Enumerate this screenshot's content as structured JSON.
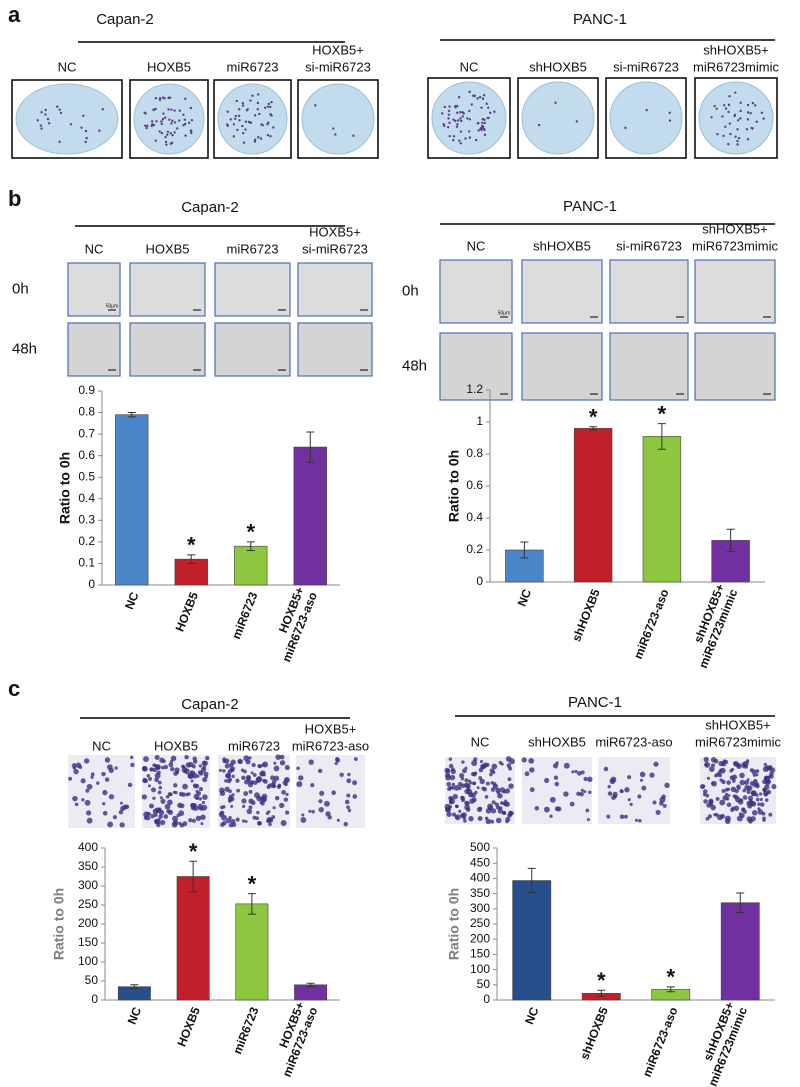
{
  "figure": {
    "a": {
      "label": "a",
      "groups": [
        {
          "title": "Capan-2",
          "conditions": [
            [
              "NC"
            ],
            [
              "HOXB5"
            ],
            [
              "miR6723"
            ],
            [
              "HOXB5+",
              "si-miR6723"
            ]
          ]
        },
        {
          "title": "PANC-1",
          "conditions": [
            [
              "NC"
            ],
            [
              "shHOXB5"
            ],
            [
              "si-miR6723"
            ],
            [
              "shHOXB5+",
              "miR6723mimic"
            ]
          ]
        }
      ]
    },
    "b": {
      "label": "b",
      "groups": [
        {
          "title": "Capan-2",
          "conditions": [
            [
              "NC"
            ],
            [
              "HOXB5"
            ],
            [
              "miR6723"
            ],
            [
              "HOXB5+",
              "si-miR6723"
            ]
          ],
          "rows": [
            "0h",
            "48h"
          ],
          "scale_bar": "50μm"
        },
        {
          "title": "PANC-1",
          "conditions": [
            [
              "NC"
            ],
            [
              "shHOXB5"
            ],
            [
              "si-miR6723"
            ],
            [
              "shHOXB5+",
              "miR6723mimic"
            ]
          ],
          "rows": [
            "0h",
            "48h"
          ],
          "scale_bar": "50μm"
        }
      ]
    },
    "c": {
      "label": "c",
      "groups": [
        {
          "title": "Capan-2",
          "conditions": [
            [
              "NC"
            ],
            [
              "HOXB5"
            ],
            [
              "miR6723"
            ],
            [
              "HOXB5+",
              "miR6723-aso"
            ]
          ]
        },
        {
          "title": "PANC-1",
          "conditions": [
            [
              "NC"
            ],
            [
              "shHOXB5"
            ],
            [
              "miR6723-aso"
            ],
            [
              "shHOXB5+",
              "miR6723mimic"
            ]
          ]
        }
      ]
    }
  },
  "chart_data": [
    {
      "type": "bar",
      "y_label": "Ratio to 0h",
      "categories": [
        [
          "NC"
        ],
        [
          "HOXB5"
        ],
        [
          "miR6723"
        ],
        [
          "HOXB5+",
          "miR6723-aso"
        ]
      ],
      "values": [
        0.79,
        0.12,
        0.18,
        0.64
      ],
      "errors": [
        0.01,
        0.02,
        0.02,
        0.07
      ],
      "significance": [
        null,
        "*",
        "*",
        null
      ],
      "colors": [
        "#4a86c8",
        "#c0202a",
        "#8dc63f",
        "#7030a0"
      ],
      "ylim": [
        0,
        0.9
      ],
      "yticks": [
        0,
        0.1,
        0.2,
        0.3,
        0.4,
        0.5,
        0.6,
        0.7,
        0.8,
        0.9
      ]
    },
    {
      "type": "bar",
      "y_label": "Ratio to 0h",
      "categories": [
        [
          "NC"
        ],
        [
          "shHOXB5"
        ],
        [
          "miR6723-aso"
        ],
        [
          "shHOXB5+",
          "miR6723mimic"
        ]
      ],
      "values": [
        0.2,
        0.96,
        0.91,
        0.26
      ],
      "errors": [
        0.05,
        0.01,
        0.08,
        0.07
      ],
      "significance": [
        null,
        "*",
        "*",
        null
      ],
      "colors": [
        "#4a86c8",
        "#c0202a",
        "#8dc63f",
        "#7030a0"
      ],
      "ylim": [
        0,
        1.2
      ],
      "yticks": [
        0,
        0.2,
        0.4,
        0.6,
        0.8,
        1,
        1.2
      ]
    },
    {
      "type": "bar",
      "y_label": "Ratio to 0h",
      "categories": [
        [
          "NC"
        ],
        [
          "HOXB5"
        ],
        [
          "miR6723"
        ],
        [
          "HOXB5+",
          "miR6723-aso"
        ]
      ],
      "values": [
        35,
        325,
        253,
        40
      ],
      "errors": [
        5,
        40,
        27,
        4
      ],
      "significance": [
        null,
        "*",
        "*",
        null
      ],
      "colors": [
        "#264f8c",
        "#c0202a",
        "#8dc63f",
        "#7030a0"
      ],
      "ylim": [
        0,
        400
      ],
      "yticks": [
        0,
        50,
        100,
        150,
        200,
        250,
        300,
        350,
        400
      ]
    },
    {
      "type": "bar",
      "y_label": "Ratio to 0h",
      "categories": [
        [
          "NC"
        ],
        [
          "shHOXB5"
        ],
        [
          "miR6723-aso"
        ],
        [
          "shHOXB5+",
          "miR6723mimic"
        ]
      ],
      "values": [
        393,
        22,
        35,
        320
      ],
      "errors": [
        40,
        10,
        8,
        32
      ],
      "significance": [
        null,
        "*",
        "*",
        null
      ],
      "colors": [
        "#264f8c",
        "#c0202a",
        "#8dc63f",
        "#7030a0"
      ],
      "ylim": [
        0,
        500
      ],
      "yticks": [
        0,
        50,
        100,
        150,
        200,
        250,
        300,
        350,
        400,
        450,
        500
      ]
    }
  ]
}
